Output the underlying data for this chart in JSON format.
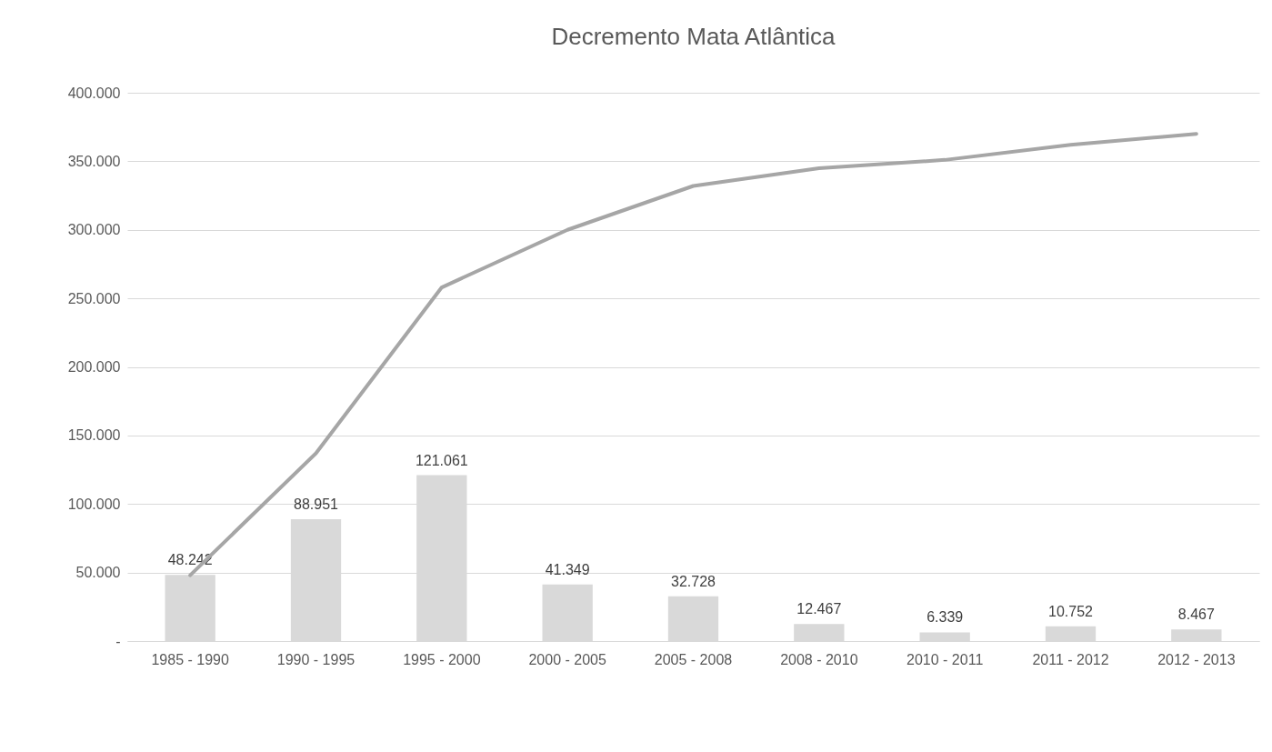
{
  "chart_data": {
    "type": "bar",
    "title": "Decremento Mata Atlântica",
    "categories": [
      "1985 - 1990",
      "1990 - 1995",
      "1995 - 2000",
      "2000 - 2005",
      "2005 - 2008",
      "2008 - 2010",
      "2010 - 2011",
      "2011 - 2012",
      "2012 - 2013"
    ],
    "series": [
      {
        "color": "#d9d9d9",
        "values": [
          48242,
          88951,
          121061,
          41349,
          32728,
          12467,
          6339,
          10752,
          8467
        ],
        "value_labels": [
          "48.242",
          "88.951",
          "121.061",
          "41.349",
          "32.728",
          "12.467",
          "6.339",
          "10.752",
          "8.467"
        ]
      },
      {
        "type": "line",
        "color": "#a6a6a6",
        "values": [
          48000,
          137000,
          258000,
          300000,
          332000,
          345000,
          351000,
          362000,
          370000
        ]
      }
    ],
    "ylim": [
      0,
      400000
    ],
    "yticks": [
      {
        "value": 0,
        "label": "-"
      },
      {
        "value": 50000,
        "label": "50.000"
      },
      {
        "value": 100000,
        "label": "100.000"
      },
      {
        "value": 150000,
        "label": "150.000"
      },
      {
        "value": 200000,
        "label": "200.000"
      },
      {
        "value": 250000,
        "label": "250.000"
      },
      {
        "value": 300000,
        "label": "300.000"
      },
      {
        "value": 350000,
        "label": "350.000"
      },
      {
        "value": 400000,
        "label": "400.000"
      }
    ],
    "grid": "y",
    "marker": "none",
    "line_style": "solid"
  }
}
